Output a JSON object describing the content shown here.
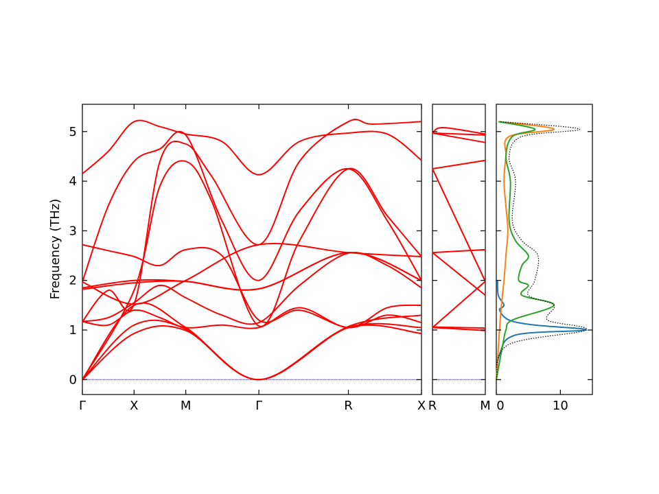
{
  "chart_data": [
    {
      "panel": "band-structure-main",
      "type": "line",
      "ylabel": "Frequency (THz)",
      "ylim": [
        -0.3,
        5.55
      ],
      "yticks": [
        0,
        1,
        2,
        3,
        4,
        5
      ],
      "path_labels": [
        "Γ",
        "X",
        "M",
        "Γ",
        "R",
        "X"
      ],
      "path_positions": [
        0,
        0.5,
        1.0,
        1.707,
        2.573,
        3.28
      ],
      "line_color": "#ff0000",
      "zero_line_color": "#0000cc",
      "series": [
        {
          "x": [
            0,
            0.5,
            1.0,
            1.707,
            2.573,
            3.28
          ],
          "values": [
            0,
            0.93,
            0.99,
            0,
            1.05,
            0.93
          ]
        },
        {
          "x": [
            0,
            0.5,
            1.0,
            1.707,
            2.573,
            3.28
          ],
          "values": [
            0,
            1.1,
            1.02,
            0,
            1.05,
            1.05
          ]
        },
        {
          "x": [
            0,
            0.5,
            1.0,
            1.707,
            2.573,
            3.28
          ],
          "values": [
            0,
            1.5,
            1.05,
            0,
            1.07,
            1.3
          ]
        },
        {
          "x": [
            0,
            0.25,
            0.5,
            0.75,
            1.0,
            1.35,
            1.707,
            2.1,
            2.573,
            2.95,
            3.28
          ],
          "values": [
            1.17,
            1.1,
            1.4,
            1.25,
            1.05,
            1.1,
            1.05,
            1.45,
            1.05,
            1.45,
            1.5
          ]
        },
        {
          "x": [
            0,
            0.25,
            0.5,
            0.75,
            1.0,
            1.35,
            1.707,
            2.1,
            2.573,
            2.95,
            3.28
          ],
          "values": [
            1.17,
            1.25,
            1.55,
            1.9,
            1.65,
            1.3,
            1.15,
            1.9,
            2.55,
            2.3,
            1.85
          ]
        },
        {
          "x": [
            0,
            0.5,
            1.0,
            1.707,
            2.573,
            3.28
          ],
          "values": [
            1.82,
            1.95,
            1.98,
            1.83,
            2.56,
            2.0
          ]
        },
        {
          "x": [
            0,
            0.5,
            1.0,
            1.707,
            2.573,
            3.28
          ],
          "values": [
            1.85,
            2.0,
            1.98,
            1.83,
            2.56,
            2.0
          ]
        },
        {
          "x": [
            0,
            0.5,
            1.0,
            1.707,
            2.573,
            3.28
          ],
          "values": [
            1.97,
            1.52,
            2.0,
            2.72,
            2.56,
            2.48
          ]
        },
        {
          "x": [
            0,
            0.25,
            0.5,
            0.75,
            1.0,
            1.35,
            1.707,
            2.1,
            2.573,
            2.95,
            3.28
          ],
          "values": [
            2.72,
            2.6,
            2.48,
            2.3,
            2.62,
            2.5,
            1.2,
            1.4,
            1.05,
            1.3,
            1.15
          ]
        },
        {
          "x": [
            0,
            0.25,
            0.5,
            0.75,
            1.0,
            1.35,
            1.707,
            2.1,
            2.573,
            2.95,
            3.28
          ],
          "values": [
            1.97,
            3.5,
            4.4,
            4.65,
            4.93,
            3.2,
            2.0,
            3.4,
            4.25,
            3.2,
            2.0
          ]
        },
        {
          "x": [
            0,
            0.25,
            0.5,
            0.75,
            1.0,
            1.35,
            1.707,
            2.1,
            2.573,
            2.95,
            3.28
          ],
          "values": [
            4.15,
            4.6,
            5.2,
            5.1,
            4.95,
            4.8,
            4.13,
            4.8,
            4.97,
            4.95,
            4.42
          ]
        },
        {
          "x": [
            0,
            0.5,
            0.75,
            1.0,
            1.25,
            1.707,
            2.1,
            2.573,
            2.95,
            3.28
          ],
          "values": [
            0,
            1.8,
            3.9,
            4.4,
            3.6,
            1.08,
            2.8,
            4.25,
            3.3,
            2.48
          ]
        },
        {
          "x": [
            0,
            0.25,
            0.5,
            0.75,
            1.0,
            1.25,
            1.707,
            2.1,
            2.573,
            2.8,
            3.28
          ],
          "values": [
            1.17,
            1.8,
            1.52,
            4.4,
            4.75,
            4.1,
            2.72,
            4.4,
            5.2,
            5.15,
            5.2
          ]
        }
      ]
    },
    {
      "panel": "band-structure-side",
      "type": "line",
      "path_labels": [
        "R",
        "M"
      ],
      "ylim": [
        -0.3,
        5.55
      ],
      "series": [
        {
          "x": [
            0,
            1
          ],
          "values": [
            1.05,
            0.99
          ]
        },
        {
          "x": [
            0,
            1
          ],
          "values": [
            1.06,
            1.04
          ]
        },
        {
          "x": [
            0,
            1
          ],
          "values": [
            2.56,
            2.62
          ]
        },
        {
          "x": [
            0,
            1
          ],
          "values": [
            2.56,
            1.7
          ]
        },
        {
          "x": [
            0,
            1
          ],
          "values": [
            4.25,
            4.42
          ]
        },
        {
          "x": [
            0,
            1
          ],
          "values": [
            4.25,
            1.98
          ]
        },
        {
          "x": [
            0,
            1
          ],
          "values": [
            4.97,
            4.93
          ]
        },
        {
          "x": [
            0,
            1
          ],
          "values": [
            4.97,
            4.78
          ]
        },
        {
          "x": [
            0,
            0.2,
            1
          ],
          "values": [
            4.97,
            5.08,
            4.95
          ]
        },
        {
          "x": [
            0,
            1
          ],
          "values": [
            1.05,
            1.98
          ]
        }
      ]
    },
    {
      "panel": "dos",
      "type": "line",
      "xlim": [
        0,
        15
      ],
      "xticks": [
        0,
        10
      ],
      "ylim": [
        -0.3,
        5.55
      ],
      "series": [
        {
          "color": "#1f77b4",
          "freq": [
            0,
            0.5,
            0.9,
            1.0,
            1.1,
            1.2,
            1.4,
            1.5,
            1.7,
            2.0
          ],
          "dos": [
            0,
            0.5,
            3,
            14,
            6,
            2,
            0.5,
            1.2,
            0.3,
            0.2
          ]
        },
        {
          "color": "#ff7f0e",
          "freq": [
            0,
            1,
            1.5,
            2.0,
            2.5,
            3.0,
            3.5,
            4.0,
            4.5,
            4.9,
            5.05,
            5.2
          ],
          "dos": [
            0,
            0.5,
            0.8,
            1.2,
            1.5,
            1.8,
            1.5,
            1.2,
            1.5,
            2.0,
            9,
            0.5
          ]
        },
        {
          "color": "#2ca02c",
          "freq": [
            0,
            0.7,
            1.0,
            1.2,
            1.5,
            1.7,
            1.9,
            2.0,
            2.3,
            2.5,
            2.8,
            3.2,
            4.0,
            4.5,
            4.9,
            5.05,
            5.2
          ],
          "dos": [
            0,
            1,
            1.5,
            2.5,
            9,
            4,
            5,
            3.5,
            4,
            5,
            3,
            2,
            2.2,
            1.5,
            2.5,
            6,
            0.3
          ]
        },
        {
          "color": "#000000",
          "dashed": true,
          "freq": [
            0,
            0.7,
            1.0,
            1.2,
            1.5,
            1.7,
            2.0,
            2.5,
            2.8,
            3.2,
            4.0,
            4.5,
            4.9,
            5.05,
            5.2
          ],
          "dos": [
            0,
            1.8,
            14,
            8,
            9,
            5,
            6,
            6.5,
            4,
            2.5,
            3,
            2,
            4,
            13,
            0.5
          ]
        }
      ]
    }
  ]
}
